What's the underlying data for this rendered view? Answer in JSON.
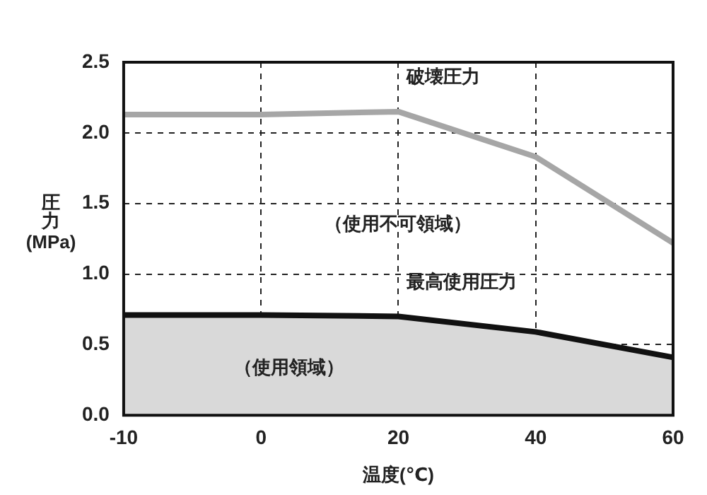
{
  "chart_data": {
    "type": "line",
    "xlabel": "温度(℃)",
    "ylabel": "圧力(MPa)",
    "categories": [
      "-10",
      "0",
      "20",
      "40",
      "60"
    ],
    "series": [
      {
        "name": "破壊圧力",
        "color": "#a6a6a6",
        "values": [
          2.13,
          2.13,
          2.15,
          1.83,
          1.22
        ]
      },
      {
        "name": "最高使用圧力",
        "type": "area",
        "color": "#111111",
        "values": [
          0.71,
          0.71,
          0.7,
          0.59,
          0.41
        ]
      }
    ],
    "ylim": [
      0,
      2.5
    ],
    "yticks": [
      {
        "value": 0,
        "label": "0.0"
      },
      0.5,
      {
        "value": 1,
        "label": "1.0"
      },
      1.5,
      {
        "value": 2,
        "label": "2.0"
      },
      2.5
    ],
    "grid": true,
    "line_style": "solid",
    "marker": "none",
    "legend": false,
    "annotations": [
      "（使用不可領域）",
      "（使用領域）"
    ]
  }
}
